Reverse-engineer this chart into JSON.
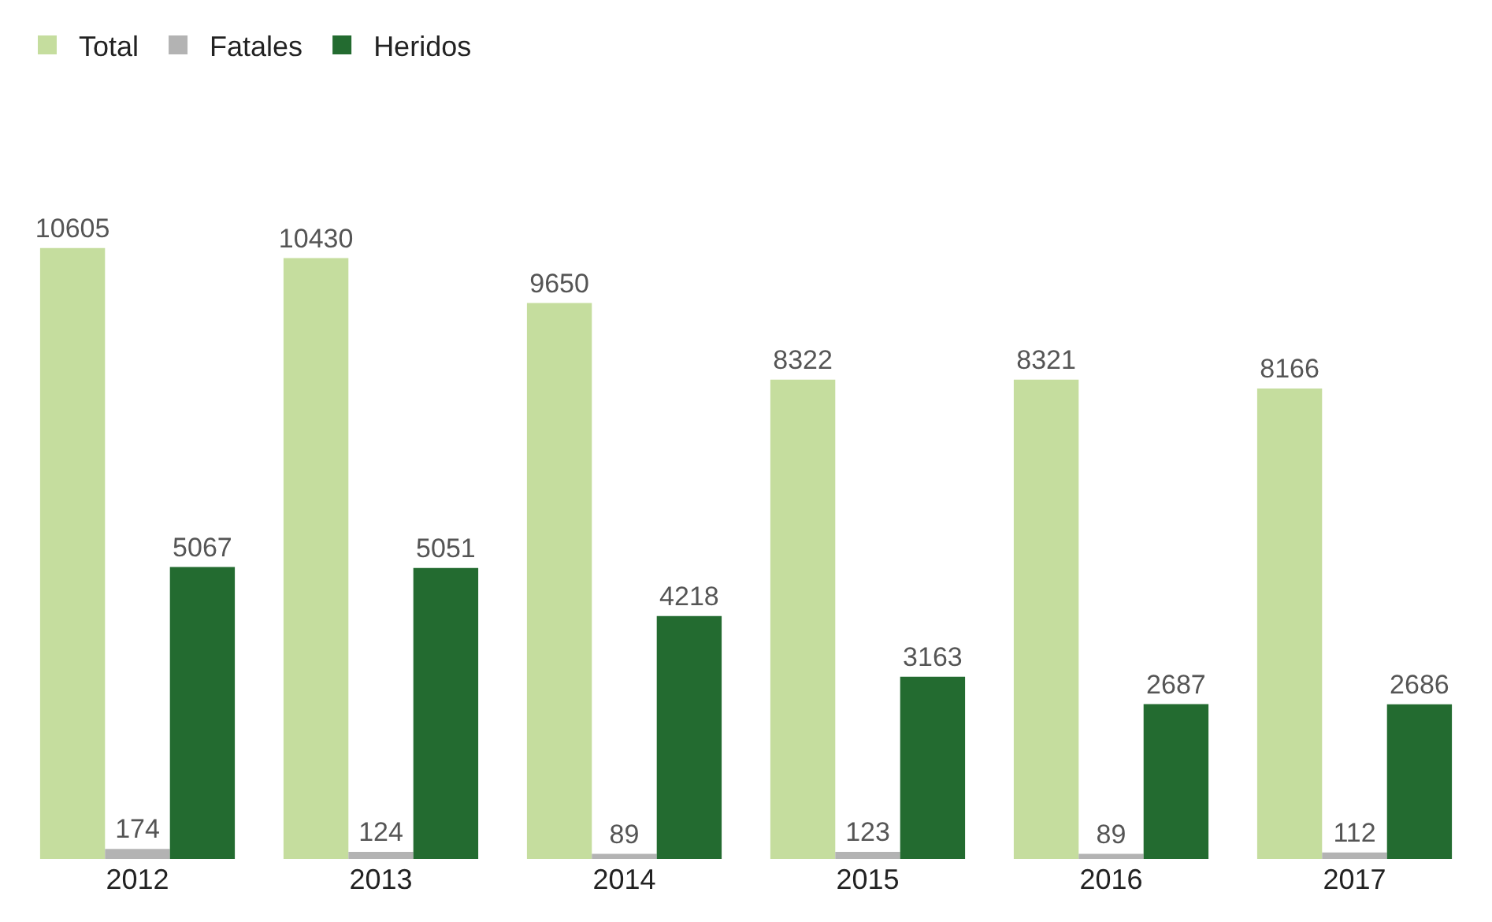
{
  "chart_data": {
    "type": "bar",
    "categories": [
      "2012",
      "2013",
      "2014",
      "2015",
      "2016",
      "2017"
    ],
    "series": [
      {
        "name": "Total",
        "color": "#c5dd9e",
        "values": [
          10605,
          10430,
          9650,
          8322,
          8321,
          8166
        ]
      },
      {
        "name": "Fatales",
        "color": "#b3b3b3",
        "values": [
          174,
          124,
          89,
          123,
          89,
          112
        ]
      },
      {
        "name": "Heridos",
        "color": "#236b30",
        "values": [
          5067,
          5051,
          4218,
          3163,
          2687,
          2686
        ]
      }
    ],
    "data_labels": true,
    "legend": "top left"
  }
}
